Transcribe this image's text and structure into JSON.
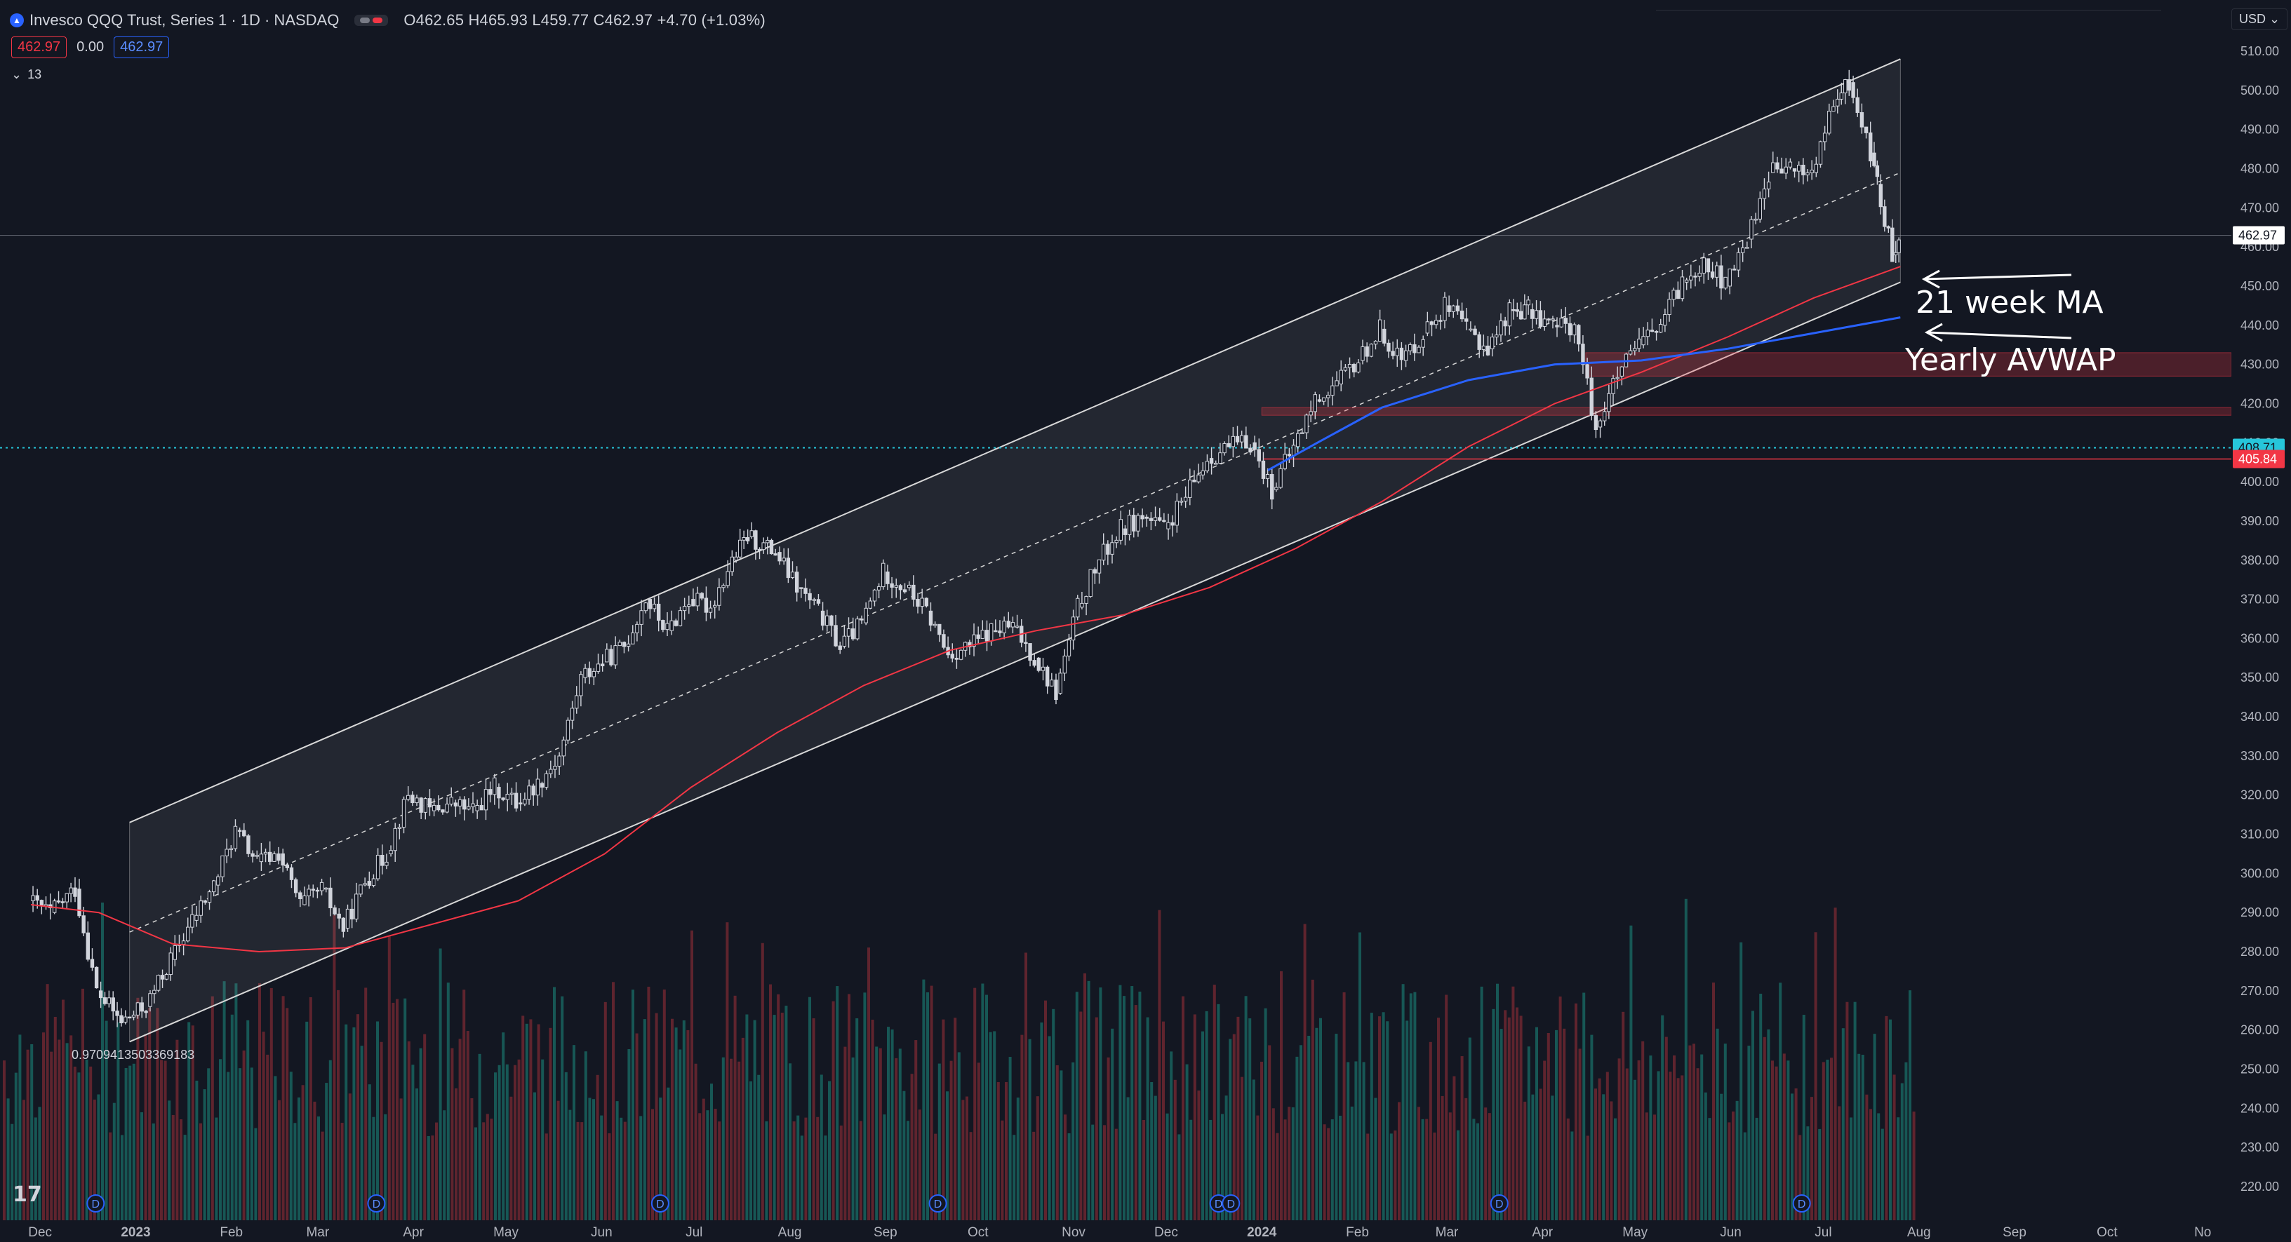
{
  "header": {
    "title": "Invesco QQQ Trust, Series 1 · 1D · NASDAQ",
    "ohlc": "O462.65 H465.93 L459.77 C462.97 +4.70 (+1.03%)",
    "chips": [
      "462.97",
      "0.00",
      "462.97"
    ],
    "indicator_count": "13",
    "currency": "USD"
  },
  "colors": {
    "background": "#131722",
    "up": "#d1d4dc",
    "down": "#d1d4dc",
    "ma": "#f23645",
    "avwap": "#2962ff",
    "zone": "#f23645",
    "volume_up": "#1a6d67",
    "volume_down": "#7a2a33"
  },
  "annotations": {
    "ma_label": "21 week MA",
    "avwap_label": "Yearly AVWAP",
    "fib_label": "0.9709413503369183"
  },
  "price_tags": [
    {
      "value": "462.97",
      "style": "last"
    },
    {
      "value": "408.71",
      "style": "cyan"
    },
    {
      "value": "405.84",
      "style": "red"
    }
  ],
  "chart_data": {
    "type": "line",
    "title": "Invesco QQQ Trust, Series 1 · 1D · NASDAQ",
    "y_ticks": [
      "510.00",
      "500.00",
      "490.00",
      "480.00",
      "470.00",
      "460.00",
      "450.00",
      "440.00",
      "430.00",
      "420.00",
      "410.00",
      "400.00",
      "390.00",
      "380.00",
      "370.00",
      "360.00",
      "350.00",
      "340.00",
      "330.00",
      "320.00",
      "310.00",
      "300.00",
      "290.00",
      "280.00",
      "270.00",
      "260.00",
      "250.00",
      "240.00",
      "230.00",
      "220.00"
    ],
    "x_ticks": [
      "Dec",
      "2023",
      "Feb",
      "Mar",
      "Apr",
      "May",
      "Jun",
      "Jul",
      "Aug",
      "Sep",
      "Oct",
      "Nov",
      "Dec",
      "2024",
      "Feb",
      "Mar",
      "Apr",
      "May",
      "Jun",
      "Jul",
      "Aug",
      "Sep",
      "Oct",
      "No"
    ],
    "ylim": [
      215,
      514
    ],
    "dividend_marker": "D",
    "dividend_marker_dates": [
      "2022-12-19",
      "2023-03-20",
      "2023-06-20",
      "2023-09-18",
      "2023-12-18",
      "2023-12-22",
      "2024-03-18",
      "2024-06-24"
    ],
    "ohlc_close_path": [
      {
        "date": "2022-11-28",
        "close": 293
      },
      {
        "date": "2022-12-05",
        "close": 290
      },
      {
        "date": "2022-12-13",
        "close": 296
      },
      {
        "date": "2022-12-20",
        "close": 270
      },
      {
        "date": "2022-12-28",
        "close": 262
      },
      {
        "date": "2023-01-05",
        "close": 266
      },
      {
        "date": "2023-01-13",
        "close": 278
      },
      {
        "date": "2023-01-20",
        "close": 288
      },
      {
        "date": "2023-01-27",
        "close": 297
      },
      {
        "date": "2023-02-03",
        "close": 311
      },
      {
        "date": "2023-02-10",
        "close": 303
      },
      {
        "date": "2023-02-17",
        "close": 305
      },
      {
        "date": "2023-02-24",
        "close": 292
      },
      {
        "date": "2023-03-03",
        "close": 296
      },
      {
        "date": "2023-03-10",
        "close": 286
      },
      {
        "date": "2023-03-17",
        "close": 298
      },
      {
        "date": "2023-03-24",
        "close": 305
      },
      {
        "date": "2023-03-31",
        "close": 320
      },
      {
        "date": "2023-04-07",
        "close": 316
      },
      {
        "date": "2023-04-14",
        "close": 318
      },
      {
        "date": "2023-04-21",
        "close": 316
      },
      {
        "date": "2023-04-28",
        "close": 322
      },
      {
        "date": "2023-05-05",
        "close": 318
      },
      {
        "date": "2023-05-12",
        "close": 323
      },
      {
        "date": "2023-05-19",
        "close": 330
      },
      {
        "date": "2023-05-26",
        "close": 350
      },
      {
        "date": "2023-06-02",
        "close": 354
      },
      {
        "date": "2023-06-09",
        "close": 358
      },
      {
        "date": "2023-06-16",
        "close": 370
      },
      {
        "date": "2023-06-23",
        "close": 362
      },
      {
        "date": "2023-06-30",
        "close": 370
      },
      {
        "date": "2023-07-07",
        "close": 368
      },
      {
        "date": "2023-07-14",
        "close": 380
      },
      {
        "date": "2023-07-19",
        "close": 386
      },
      {
        "date": "2023-07-28",
        "close": 382
      },
      {
        "date": "2023-08-04",
        "close": 373
      },
      {
        "date": "2023-08-11",
        "close": 367
      },
      {
        "date": "2023-08-18",
        "close": 358
      },
      {
        "date": "2023-08-25",
        "close": 364
      },
      {
        "date": "2023-09-01",
        "close": 377
      },
      {
        "date": "2023-09-08",
        "close": 373
      },
      {
        "date": "2023-09-15",
        "close": 367
      },
      {
        "date": "2023-09-22",
        "close": 356
      },
      {
        "date": "2023-09-29",
        "close": 358
      },
      {
        "date": "2023-10-06",
        "close": 362
      },
      {
        "date": "2023-10-13",
        "close": 363
      },
      {
        "date": "2023-10-20",
        "close": 355
      },
      {
        "date": "2023-10-27",
        "close": 346
      },
      {
        "date": "2023-11-03",
        "close": 368
      },
      {
        "date": "2023-11-10",
        "close": 380
      },
      {
        "date": "2023-11-17",
        "close": 388
      },
      {
        "date": "2023-11-24",
        "close": 391
      },
      {
        "date": "2023-12-01",
        "close": 388
      },
      {
        "date": "2023-12-08",
        "close": 396
      },
      {
        "date": "2023-12-15",
        "close": 406
      },
      {
        "date": "2023-12-22",
        "close": 409
      },
      {
        "date": "2023-12-29",
        "close": 410
      },
      {
        "date": "2024-01-05",
        "close": 398
      },
      {
        "date": "2024-01-12",
        "close": 409
      },
      {
        "date": "2024-01-19",
        "close": 421
      },
      {
        "date": "2024-01-26",
        "close": 425
      },
      {
        "date": "2024-02-02",
        "close": 431
      },
      {
        "date": "2024-02-09",
        "close": 439
      },
      {
        "date": "2024-02-16",
        "close": 431
      },
      {
        "date": "2024-02-23",
        "close": 438
      },
      {
        "date": "2024-03-01",
        "close": 445
      },
      {
        "date": "2024-03-08",
        "close": 439
      },
      {
        "date": "2024-03-15",
        "close": 434
      },
      {
        "date": "2024-03-22",
        "close": 444
      },
      {
        "date": "2024-03-28",
        "close": 444
      },
      {
        "date": "2024-04-05",
        "close": 440
      },
      {
        "date": "2024-04-12",
        "close": 440
      },
      {
        "date": "2024-04-19",
        "close": 414
      },
      {
        "date": "2024-04-26",
        "close": 427
      },
      {
        "date": "2024-05-03",
        "close": 435
      },
      {
        "date": "2024-05-10",
        "close": 440
      },
      {
        "date": "2024-05-17",
        "close": 451
      },
      {
        "date": "2024-05-24",
        "close": 457
      },
      {
        "date": "2024-05-31",
        "close": 450
      },
      {
        "date": "2024-06-07",
        "close": 462
      },
      {
        "date": "2024-06-14",
        "close": 479
      },
      {
        "date": "2024-06-21",
        "close": 480
      },
      {
        "date": "2024-06-28",
        "close": 479
      },
      {
        "date": "2024-07-05",
        "close": 496
      },
      {
        "date": "2024-07-10",
        "close": 502
      },
      {
        "date": "2024-07-17",
        "close": 484
      },
      {
        "date": "2024-07-19",
        "close": 476
      },
      {
        "date": "2024-07-24",
        "close": 458
      },
      {
        "date": "2024-07-26",
        "close": 462.97
      }
    ],
    "series": [
      {
        "name": "21 week MA",
        "points": [
          {
            "date": "2022-11-28",
            "value": 292
          },
          {
            "date": "2022-12-20",
            "value": 290
          },
          {
            "date": "2023-01-13",
            "value": 282
          },
          {
            "date": "2023-02-10",
            "value": 280
          },
          {
            "date": "2023-03-10",
            "value": 281
          },
          {
            "date": "2023-04-07",
            "value": 287
          },
          {
            "date": "2023-05-05",
            "value": 293
          },
          {
            "date": "2023-06-02",
            "value": 305
          },
          {
            "date": "2023-06-30",
            "value": 322
          },
          {
            "date": "2023-07-28",
            "value": 336
          },
          {
            "date": "2023-08-25",
            "value": 348
          },
          {
            "date": "2023-09-22",
            "value": 357
          },
          {
            "date": "2023-10-20",
            "value": 362
          },
          {
            "date": "2023-11-17",
            "value": 366
          },
          {
            "date": "2023-12-15",
            "value": 373
          },
          {
            "date": "2024-01-12",
            "value": 383
          },
          {
            "date": "2024-02-09",
            "value": 395
          },
          {
            "date": "2024-03-08",
            "value": 409
          },
          {
            "date": "2024-04-05",
            "value": 420
          },
          {
            "date": "2024-05-03",
            "value": 428
          },
          {
            "date": "2024-05-31",
            "value": 437
          },
          {
            "date": "2024-06-28",
            "value": 447
          },
          {
            "date": "2024-07-26",
            "value": 455
          }
        ]
      },
      {
        "name": "Yearly AVWAP",
        "points": [
          {
            "date": "2024-01-03",
            "value": 403
          },
          {
            "date": "2024-01-19",
            "value": 410
          },
          {
            "date": "2024-02-09",
            "value": 419
          },
          {
            "date": "2024-03-08",
            "value": 426
          },
          {
            "date": "2024-04-05",
            "value": 430
          },
          {
            "date": "2024-05-03",
            "value": 431
          },
          {
            "date": "2024-05-31",
            "value": 434
          },
          {
            "date": "2024-06-28",
            "value": 438
          },
          {
            "date": "2024-07-26",
            "value": 442
          }
        ]
      }
    ],
    "regression_channel": {
      "start_date": "2022-12-30",
      "end_date": "2024-07-26",
      "upper": [
        313,
        508
      ],
      "middle": [
        285,
        479
      ],
      "lower": [
        257,
        451
      ]
    },
    "horizontal_levels": [
      {
        "value": 408.71,
        "style": "cyan-dotted"
      },
      {
        "value": 405.84,
        "style": "red"
      }
    ],
    "zones": [
      {
        "from_date": "2024-01-01",
        "low": 417,
        "high": 419
      },
      {
        "from_date": "2024-04-15",
        "low": 427,
        "high": 433
      }
    ],
    "last_price": 462.97
  }
}
